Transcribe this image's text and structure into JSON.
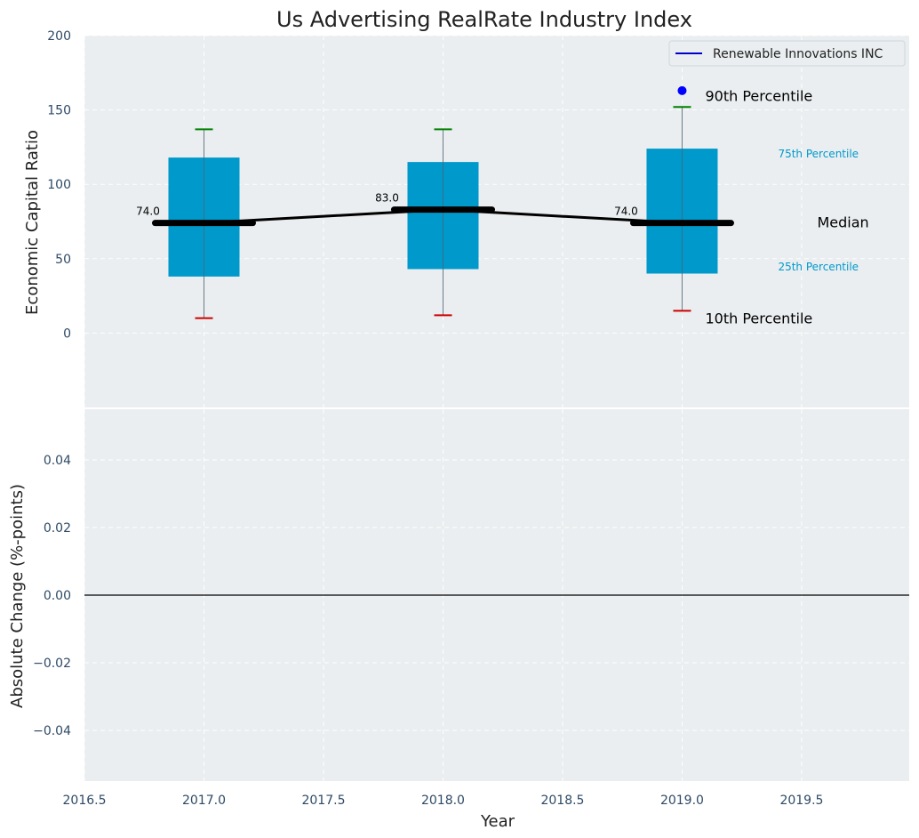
{
  "chart_data": [
    {
      "type": "box",
      "title": "Us Advertising RealRate Industry Index",
      "ylabel": "Economic Capital Ratio",
      "ylim": [
        -50,
        200
      ],
      "yticks": [
        0,
        50,
        100,
        150,
        200
      ],
      "xlim": [
        2016.5,
        2019.95
      ],
      "grid": true,
      "legend": {
        "position": "top-right",
        "entries": [
          {
            "label": "Renewable Innovations INC",
            "color": "#0000cc"
          }
        ]
      },
      "boxes": [
        {
          "x": 2017,
          "p10": 10,
          "p25": 38,
          "median": 74,
          "p75": 118,
          "p90": 137,
          "median_label": "74.0"
        },
        {
          "x": 2018,
          "p10": 12,
          "p25": 43,
          "median": 83,
          "p75": 115,
          "p90": 137,
          "median_label": "83.0"
        },
        {
          "x": 2019,
          "p10": 15,
          "p25": 40,
          "median": 74,
          "p75": 124,
          "p90": 152,
          "median_label": "74.0"
        }
      ],
      "median_line": {
        "x": [
          2017,
          2018,
          2019
        ],
        "y": [
          74,
          83,
          74
        ]
      },
      "outliers": [
        {
          "x": 2019,
          "y": 163
        }
      ],
      "annotations": {
        "p90": "90th Percentile",
        "p75": "75th Percentile",
        "median": "Median",
        "p25": "25th Percentile",
        "p10": "10th Percentile"
      },
      "colors": {
        "box": "#0099cc",
        "median": "#000000",
        "p90_cap": "#008000",
        "p10_cap": "#cc0000",
        "outlier": "#0000ff",
        "small_annot": "#0099cc",
        "background": "#eaeef0"
      }
    },
    {
      "type": "line",
      "xlabel": "Year",
      "ylabel": "Absolute Change (%-points)",
      "ylim": [
        -0.055,
        0.055
      ],
      "yticks": [
        -0.04,
        -0.02,
        0.0,
        0.02,
        0.04
      ],
      "ytick_labels": [
        "−0.04",
        "−0.02",
        "0.00",
        "0.02",
        "0.04"
      ],
      "xticks": [
        2016.5,
        2017.0,
        2017.5,
        2018.0,
        2018.5,
        2019.0,
        2019.5
      ],
      "xtick_labels": [
        "2016.5",
        "2017.0",
        "2017.5",
        "2018.0",
        "2018.5",
        "2019.0",
        "2019.5"
      ],
      "xlim": [
        2016.5,
        2019.95
      ],
      "zero_line": 0,
      "grid": true
    }
  ]
}
